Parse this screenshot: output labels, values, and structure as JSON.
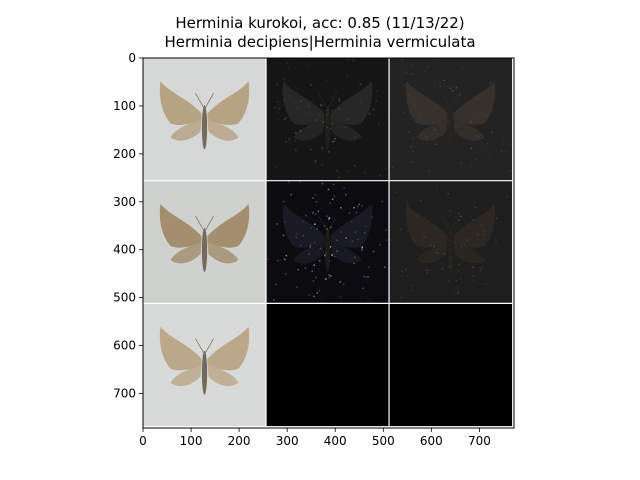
{
  "chart_data": {
    "type": "image-grid",
    "title": "Herminia kurokoi, acc: 0.85 (11/13/22)",
    "subtitle": "Herminia decipiens|Herminia vermiculata",
    "xlim": [
      0,
      772
    ],
    "ylim": [
      772,
      0
    ],
    "x_ticks": [
      0,
      100,
      200,
      300,
      400,
      500,
      600,
      700
    ],
    "y_ticks": [
      0,
      100,
      200,
      300,
      400,
      500,
      600,
      700
    ],
    "grid_rows": 3,
    "grid_cols": 3,
    "tile_size": 256,
    "panels": [
      {
        "row": 0,
        "col": 0,
        "kind": "moth-photo",
        "bg": "#d6d8d7",
        "moth": "#b09a77"
      },
      {
        "row": 0,
        "col": 1,
        "kind": "saliency-dark",
        "bg": "#151515",
        "moth": "#3a3a3a"
      },
      {
        "row": 0,
        "col": 2,
        "kind": "overlay-dark",
        "bg": "#232323",
        "moth": "#4a4036"
      },
      {
        "row": 1,
        "col": 0,
        "kind": "moth-photo",
        "bg": "#cfd1cf",
        "moth": "#9c8460"
      },
      {
        "row": 1,
        "col": 1,
        "kind": "saliency-color",
        "bg": "#0c0c10",
        "moth": "#2a2a3a"
      },
      {
        "row": 1,
        "col": 2,
        "kind": "overlay-dark",
        "bg": "#1e1e1e",
        "moth": "#3b3128"
      },
      {
        "row": 2,
        "col": 0,
        "kind": "moth-photo",
        "bg": "#d8dad9",
        "moth": "#b7a07e"
      },
      {
        "row": 2,
        "col": 1,
        "kind": "empty",
        "bg": "#000000",
        "moth": ""
      },
      {
        "row": 2,
        "col": 2,
        "kind": "empty",
        "bg": "#000000",
        "moth": ""
      }
    ]
  }
}
